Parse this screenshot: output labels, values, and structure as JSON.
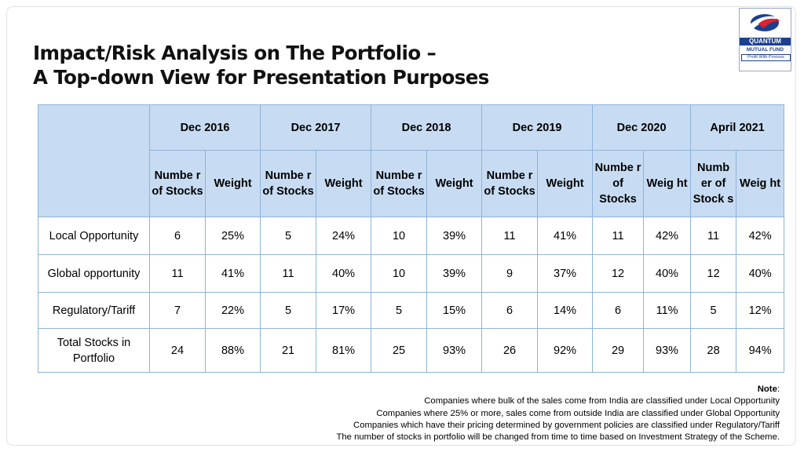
{
  "title": {
    "line1": "Impact/Risk Analysis on The Portfolio –",
    "line2": "A Top-down View for Presentation Purposes"
  },
  "logo": {
    "name": "QUANTUM",
    "subtitle": "MUTUAL FUND",
    "tagline": "Profit With Process",
    "colors": {
      "primary": "#1d3f8f",
      "accent": "#d9232e"
    }
  },
  "table": {
    "periods": [
      "Dec 2016",
      "Dec 2017",
      "Dec 2018",
      "Dec 2019",
      "Dec 2020",
      "April 2021"
    ],
    "subheaders": [
      [
        "Numbe r of Stocks",
        "Weight"
      ],
      [
        "Numbe r of Stocks",
        "Weight"
      ],
      [
        "Numbe r of Stocks",
        "Weight"
      ],
      [
        "Numbe r of Stocks",
        "Weight"
      ],
      [
        "Numbe r of Stocks",
        "Weig ht"
      ],
      [
        "Numb er of Stock s",
        "Weig ht"
      ]
    ],
    "rows": [
      {
        "label": "Local Opportunity",
        "values": [
          "6",
          "25%",
          "5",
          "24%",
          "10",
          "39%",
          "11",
          "41%",
          "11",
          "42%",
          "11",
          "42%"
        ]
      },
      {
        "label": "Global opportunity",
        "values": [
          "11",
          "41%",
          "11",
          "40%",
          "10",
          "39%",
          "9",
          "37%",
          "12",
          "40%",
          "12",
          "40%"
        ]
      },
      {
        "label": "Regulatory/Tariff",
        "values": [
          "7",
          "22%",
          "5",
          "17%",
          "5",
          "15%",
          "6",
          "14%",
          "6",
          "11%",
          "5",
          "12%"
        ]
      },
      {
        "label": "Total Stocks in Portfolio",
        "values": [
          "24",
          "88%",
          "21",
          "81%",
          "25",
          "93%",
          "26",
          "92%",
          "29",
          "93%",
          "28",
          "94%"
        ]
      }
    ],
    "colors": {
      "header_bg": "#c7dcf2",
      "border": "#8fb3d9"
    }
  },
  "note": {
    "heading": "Note",
    "lines": [
      "Companies where bulk of the sales come from India are classified under Local Opportunity",
      "Companies where 25% or more, sales come from outside India are classified under Global Opportunity",
      "Companies which have their pricing determined by government policies are classified under Regulatory/Tariff",
      "The number of stocks in portfolio will be changed from time to time based on Investment Strategy of the Scheme."
    ]
  }
}
